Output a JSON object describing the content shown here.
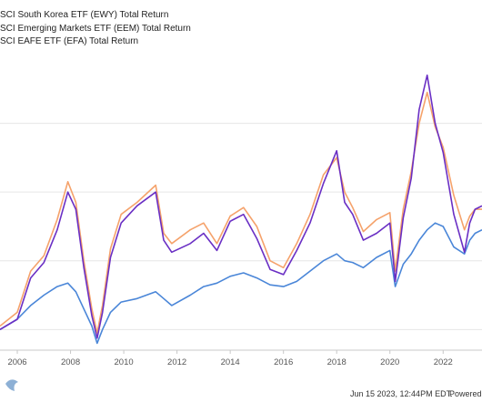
{
  "legend": [
    "SCI South Korea ETF (EWY) Total Return",
    "SCI Emerging Markets ETF (EEM) Total Return",
    "SCI EAFE ETF (EFA) Total Return"
  ],
  "footer": {
    "timestamp": "Jun 15 2023, 12:44PM EDT.",
    "powered_by": "Powered by"
  },
  "colors": {
    "ewy": "#6a2fc4",
    "eem": "#f5a26b",
    "efa": "#4a86d8",
    "grid": "#e6e6e6",
    "axis": "#c8c8c8"
  },
  "chart_data": {
    "type": "line",
    "x_tick_labels": [
      "2006",
      "2008",
      "2010",
      "2012",
      "2014",
      "2016",
      "2018",
      "2020",
      "2022"
    ],
    "x_range": [
      2005.35,
      2023.46
    ],
    "series": [
      {
        "name": "SCI South Korea ETF (EWY) Total Return",
        "key": "ewy",
        "x": [
          2005.35,
          2006.0,
          2006.5,
          2007.0,
          2007.5,
          2007.9,
          2008.2,
          2008.5,
          2008.8,
          2009.0,
          2009.2,
          2009.5,
          2009.9,
          2010.5,
          2011.2,
          2011.5,
          2011.8,
          2012.5,
          2013.0,
          2013.5,
          2014.0,
          2014.5,
          2015.0,
          2015.5,
          2016.0,
          2016.5,
          2017.0,
          2017.5,
          2018.0,
          2018.3,
          2018.6,
          2019.0,
          2019.5,
          2020.0,
          2020.2,
          2020.5,
          2020.8,
          2021.1,
          2021.4,
          2021.7,
          2022.0,
          2022.4,
          2022.8,
          2023.0,
          2023.2,
          2023.46
        ],
        "y": [
          0,
          6,
          30,
          39,
          58,
          80,
          70,
          36,
          8,
          -5,
          10,
          42,
          62,
          72,
          80,
          52,
          45,
          50,
          56,
          46,
          63,
          67,
          53,
          35,
          32,
          46,
          62,
          85,
          104,
          74,
          67,
          52,
          56,
          62,
          28,
          65,
          88,
          128,
          148,
          120,
          103,
          67,
          45,
          62,
          70,
          72
        ]
      },
      {
        "name": "SCI Emerging Markets ETF (EEM) Total Return",
        "key": "eem",
        "x": [
          2005.35,
          2006.0,
          2006.5,
          2007.0,
          2007.5,
          2007.9,
          2008.2,
          2008.5,
          2008.8,
          2009.0,
          2009.2,
          2009.5,
          2009.9,
          2010.5,
          2011.2,
          2011.5,
          2011.8,
          2012.5,
          2013.0,
          2013.5,
          2014.0,
          2014.5,
          2015.0,
          2015.5,
          2016.0,
          2016.5,
          2017.0,
          2017.5,
          2018.0,
          2018.3,
          2018.6,
          2019.0,
          2019.5,
          2020.0,
          2020.2,
          2020.5,
          2020.8,
          2021.1,
          2021.4,
          2021.7,
          2022.0,
          2022.4,
          2022.8,
          2023.0,
          2023.2,
          2023.46
        ],
        "y": [
          2,
          10,
          34,
          43,
          64,
          86,
          74,
          40,
          12,
          -2,
          14,
          47,
          67,
          74,
          84,
          56,
          50,
          58,
          62,
          50,
          66,
          71,
          60,
          40,
          36,
          50,
          67,
          90,
          100,
          80,
          71,
          57,
          64,
          68,
          34,
          70,
          92,
          120,
          138,
          118,
          106,
          78,
          58,
          66,
          70,
          70
        ]
      },
      {
        "name": "SCI EAFE ETF (EFA) Total Return",
        "key": "efa",
        "x": [
          2005.35,
          2006.0,
          2006.5,
          2007.0,
          2007.5,
          2007.9,
          2008.2,
          2008.5,
          2008.8,
          2009.0,
          2009.2,
          2009.5,
          2009.9,
          2010.5,
          2011.2,
          2011.5,
          2011.8,
          2012.5,
          2013.0,
          2013.5,
          2014.0,
          2014.5,
          2015.0,
          2015.5,
          2016.0,
          2016.5,
          2017.0,
          2017.5,
          2018.0,
          2018.3,
          2018.6,
          2019.0,
          2019.5,
          2020.0,
          2020.2,
          2020.5,
          2020.8,
          2021.1,
          2021.4,
          2021.7,
          2022.0,
          2022.4,
          2022.8,
          2023.0,
          2023.2,
          2023.46
        ],
        "y": [
          0,
          6,
          14,
          20,
          25,
          27,
          22,
          12,
          2,
          -8,
          0,
          10,
          16,
          18,
          22,
          18,
          14,
          20,
          25,
          27,
          31,
          33,
          30,
          26,
          25,
          28,
          34,
          40,
          44,
          40,
          39,
          36,
          42,
          46,
          25,
          38,
          44,
          52,
          58,
          62,
          60,
          48,
          44,
          52,
          56,
          58
        ]
      }
    ],
    "ylim": [
      -12,
      160
    ],
    "grid": true,
    "legend_position": "top-left"
  }
}
